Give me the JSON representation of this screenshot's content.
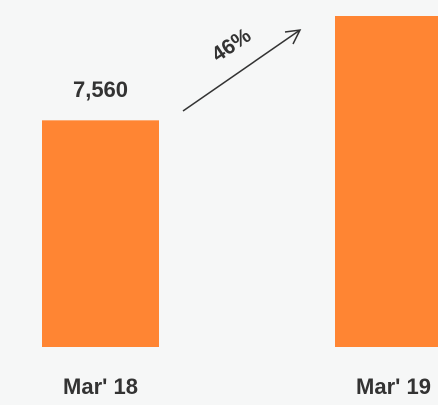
{
  "chart_data": {
    "type": "bar",
    "categories": [
      "Mar' 18",
      "Mar' 19"
    ],
    "values": [
      7560,
      11040
    ],
    "value_labels": [
      "7,560",
      null
    ],
    "color": "#ff8533",
    "annotation": "46%"
  }
}
